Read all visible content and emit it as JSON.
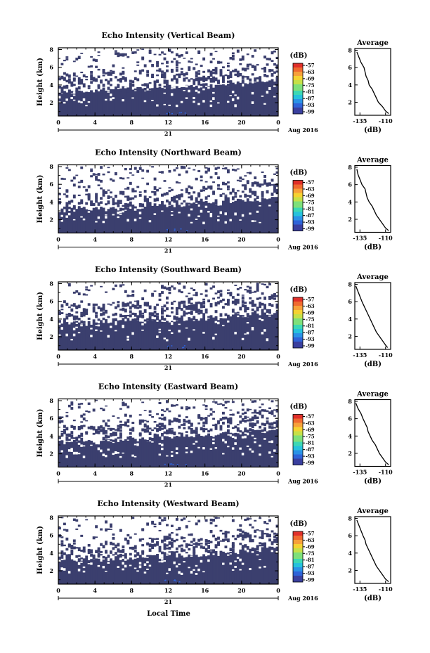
{
  "figure": {
    "date_label": "Aug 2016",
    "day_label": "21",
    "xlabel": "Local Time",
    "ylabel": "Height (km)",
    "unit": "(dB)",
    "avg_title": "Average",
    "avg_xlabel": "(dB)"
  },
  "colors": {
    "bg_echo": "#3b3f6e",
    "colormap": [
      "#3a3f9e",
      "#2f63d8",
      "#2a92e6",
      "#26c2dc",
      "#3cd8b4",
      "#7ee07a",
      "#c6e048",
      "#f5d232",
      "#f7a03a",
      "#f06a30",
      "#e0302a"
    ]
  },
  "chart_data": [
    {
      "type": "heatmap",
      "title": "Echo Intensity (Vertical Beam)",
      "xlabel": "Local Time",
      "ylabel": "Height (km)",
      "x_ticks": [
        "0",
        "4",
        "8",
        "12",
        "16",
        "20",
        "0"
      ],
      "y_ticks": [
        "2",
        "4",
        "6",
        "8"
      ],
      "xlim": [
        0,
        24
      ],
      "ylim": [
        0.5,
        8.2
      ],
      "colorbar_label": "(dB)",
      "colorbar_ticks": [
        "-57",
        "-63",
        "-69",
        "-75",
        "-81",
        "-87",
        "-93",
        "-99"
      ],
      "lower_boundary_km": [
        [
          0,
          3.3
        ],
        [
          2,
          3.2
        ],
        [
          4,
          3.3
        ],
        [
          6,
          3.6
        ],
        [
          8,
          3.5
        ],
        [
          10,
          3.6
        ],
        [
          12,
          3.9
        ],
        [
          14,
          3.8
        ],
        [
          16,
          3.9
        ],
        [
          18,
          4.0
        ],
        [
          20,
          4.1
        ],
        [
          22,
          4.3
        ],
        [
          24,
          4.5
        ]
      ],
      "seed": 11,
      "average_profile": {
        "title": "Average",
        "xlabel": "(dB)",
        "x_ticks": [
          "-135",
          "-110"
        ],
        "xlim": [
          -140,
          -105
        ],
        "y_ticks": [
          "2",
          "4",
          "6",
          "8"
        ],
        "ylim": [
          0.5,
          8.2
        ],
        "height_km": [
          7.8,
          7.2,
          6.6,
          6.0,
          5.5,
          5.0,
          4.5,
          4.0,
          3.5,
          3.0,
          2.5,
          2.0,
          1.5,
          1.0,
          0.7
        ],
        "power_db": [
          -138,
          -136,
          -134,
          -131,
          -130,
          -129,
          -127,
          -126,
          -123,
          -121,
          -119,
          -117,
          -113,
          -110,
          -107
        ]
      }
    },
    {
      "type": "heatmap",
      "title": "Echo Intensity (Northward Beam)",
      "xlabel": "Local Time",
      "ylabel": "Height (km)",
      "x_ticks": [
        "0",
        "4",
        "8",
        "12",
        "16",
        "20",
        "0"
      ],
      "y_ticks": [
        "2",
        "4",
        "6",
        "8"
      ],
      "xlim": [
        0,
        24
      ],
      "ylim": [
        0.5,
        8.2
      ],
      "colorbar_label": "(dB)",
      "colorbar_ticks": [
        "-57",
        "-63",
        "-69",
        "-75",
        "-81",
        "-87",
        "-93",
        "-99"
      ],
      "lower_boundary_km": [
        [
          0,
          3.0
        ],
        [
          2,
          3.1
        ],
        [
          4,
          3.2
        ],
        [
          6,
          3.3
        ],
        [
          8,
          3.3
        ],
        [
          10,
          3.5
        ],
        [
          12,
          3.6
        ],
        [
          14,
          3.7
        ],
        [
          16,
          3.8
        ],
        [
          18,
          3.9
        ],
        [
          20,
          4.1
        ],
        [
          22,
          4.3
        ],
        [
          24,
          4.6
        ]
      ],
      "seed": 23,
      "average_profile": {
        "title": "Average",
        "xlabel": "(dB)",
        "x_ticks": [
          "-135",
          "-110"
        ],
        "xlim": [
          -140,
          -105
        ],
        "y_ticks": [
          "2",
          "4",
          "6",
          "8"
        ],
        "ylim": [
          0.5,
          8.2
        ],
        "height_km": [
          7.8,
          7.2,
          6.6,
          6.0,
          5.5,
          5.0,
          4.5,
          4.0,
          3.5,
          3.0,
          2.5,
          2.0,
          1.5,
          1.0,
          0.7
        ],
        "power_db": [
          -138,
          -137,
          -135,
          -133,
          -130,
          -129,
          -128,
          -126,
          -123,
          -121,
          -119,
          -116,
          -113,
          -110,
          -107
        ]
      }
    },
    {
      "type": "heatmap",
      "title": "Echo Intensity (Southward Beam)",
      "xlabel": "Local Time",
      "ylabel": "Height (km)",
      "x_ticks": [
        "0",
        "4",
        "8",
        "12",
        "16",
        "20",
        "0"
      ],
      "y_ticks": [
        "2",
        "4",
        "6",
        "8"
      ],
      "xlim": [
        0,
        24
      ],
      "ylim": [
        0.5,
        8.2
      ],
      "colorbar_label": "(dB)",
      "colorbar_ticks": [
        "-57",
        "-63",
        "-69",
        "-75",
        "-81",
        "-87",
        "-93",
        "-99"
      ],
      "lower_boundary_km": [
        [
          0,
          3.4
        ],
        [
          2,
          3.5
        ],
        [
          4,
          3.4
        ],
        [
          6,
          3.6
        ],
        [
          8,
          3.7
        ],
        [
          10,
          3.8
        ],
        [
          12,
          3.9
        ],
        [
          14,
          4.0
        ],
        [
          16,
          4.1
        ],
        [
          18,
          4.2
        ],
        [
          20,
          4.4
        ],
        [
          22,
          4.6
        ],
        [
          24,
          4.8
        ]
      ],
      "seed": 37,
      "average_profile": {
        "title": "Average",
        "xlabel": "(dB)",
        "x_ticks": [
          "-135",
          "-110"
        ],
        "xlim": [
          -140,
          -105
        ],
        "y_ticks": [
          "2",
          "4",
          "6",
          "8"
        ],
        "ylim": [
          0.5,
          8.2
        ],
        "height_km": [
          7.8,
          7.2,
          6.6,
          6.0,
          5.5,
          5.0,
          4.5,
          4.0,
          3.5,
          3.0,
          2.5,
          2.0,
          1.5,
          1.0,
          0.7
        ],
        "power_db": [
          -139,
          -137,
          -135,
          -133,
          -131,
          -129,
          -127,
          -125,
          -123,
          -121,
          -119,
          -116,
          -113,
          -110,
          -108
        ]
      }
    },
    {
      "type": "heatmap",
      "title": "Echo Intensity (Eastward Beam)",
      "xlabel": "Local Time",
      "ylabel": "Height (km)",
      "x_ticks": [
        "0",
        "4",
        "8",
        "12",
        "16",
        "20",
        "0"
      ],
      "y_ticks": [
        "2",
        "4",
        "6",
        "8"
      ],
      "xlim": [
        0,
        24
      ],
      "ylim": [
        0.5,
        8.2
      ],
      "colorbar_label": "(dB)",
      "colorbar_ticks": [
        "-57",
        "-63",
        "-69",
        "-75",
        "-81",
        "-87",
        "-93",
        "-99"
      ],
      "lower_boundary_km": [
        [
          0,
          3.2
        ],
        [
          2,
          3.3
        ],
        [
          4,
          3.3
        ],
        [
          6,
          3.5
        ],
        [
          8,
          3.6
        ],
        [
          10,
          3.6
        ],
        [
          12,
          3.8
        ],
        [
          14,
          3.9
        ],
        [
          16,
          4.0
        ],
        [
          18,
          4.1
        ],
        [
          20,
          4.3
        ],
        [
          22,
          4.5
        ],
        [
          24,
          4.7
        ]
      ],
      "seed": 53,
      "average_profile": {
        "title": "Average",
        "xlabel": "(dB)",
        "x_ticks": [
          "-135",
          "-110"
        ],
        "xlim": [
          -140,
          -105
        ],
        "y_ticks": [
          "2",
          "4",
          "6",
          "8"
        ],
        "ylim": [
          0.5,
          8.2
        ],
        "height_km": [
          7.8,
          7.2,
          6.6,
          6.0,
          5.5,
          5.0,
          4.5,
          4.0,
          3.5,
          3.0,
          2.5,
          2.0,
          1.5,
          1.0,
          0.7
        ],
        "power_db": [
          -139,
          -137,
          -134,
          -132,
          -130,
          -128,
          -127,
          -125,
          -123,
          -120,
          -118,
          -116,
          -113,
          -110,
          -107
        ]
      }
    },
    {
      "type": "heatmap",
      "title": "Echo Intensity (Westward Beam)",
      "xlabel": "Local Time",
      "ylabel": "Height (km)",
      "x_ticks": [
        "0",
        "4",
        "8",
        "12",
        "16",
        "20",
        "0"
      ],
      "y_ticks": [
        "2",
        "4",
        "6",
        "8"
      ],
      "xlim": [
        0,
        24
      ],
      "ylim": [
        0.5,
        8.2
      ],
      "colorbar_label": "(dB)",
      "colorbar_ticks": [
        "-57",
        "-63",
        "-69",
        "-75",
        "-81",
        "-87",
        "-93",
        "-99"
      ],
      "lower_boundary_km": [
        [
          0,
          3.1
        ],
        [
          2,
          3.2
        ],
        [
          4,
          3.3
        ],
        [
          6,
          3.4
        ],
        [
          8,
          3.4
        ],
        [
          10,
          3.6
        ],
        [
          12,
          3.7
        ],
        [
          14,
          3.8
        ],
        [
          16,
          3.9
        ],
        [
          18,
          4.0
        ],
        [
          20,
          4.2
        ],
        [
          22,
          4.4
        ],
        [
          24,
          4.6
        ]
      ],
      "seed": 71,
      "average_profile": {
        "title": "Average",
        "xlabel": "(dB)",
        "x_ticks": [
          "-135",
          "-110"
        ],
        "xlim": [
          -140,
          -105
        ],
        "y_ticks": [
          "2",
          "4",
          "6",
          "8"
        ],
        "ylim": [
          0.5,
          8.2
        ],
        "height_km": [
          7.8,
          7.2,
          6.6,
          6.0,
          5.5,
          5.0,
          4.5,
          4.0,
          3.5,
          3.0,
          2.5,
          2.0,
          1.5,
          1.0,
          0.7
        ],
        "power_db": [
          -138,
          -136,
          -134,
          -132,
          -130,
          -129,
          -127,
          -125,
          -123,
          -121,
          -119,
          -116,
          -113,
          -110,
          -107
        ]
      }
    }
  ]
}
